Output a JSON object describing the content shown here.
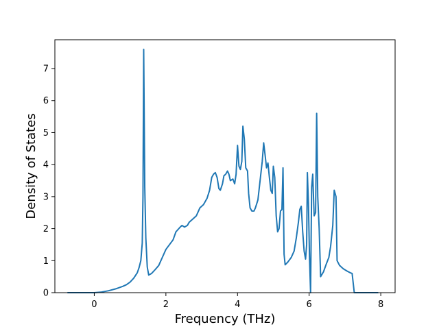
{
  "chart_data": {
    "type": "line",
    "title": "",
    "xlabel": "Frequency (THz)",
    "ylabel": "Density of States",
    "xlim": [
      -1.1,
      8.4
    ],
    "ylim": [
      0,
      7.9
    ],
    "grid": false,
    "xticks": [
      0,
      2,
      4,
      6,
      8
    ],
    "yticks": [
      0,
      1,
      2,
      3,
      4,
      5,
      6,
      7
    ],
    "xtick_labels": [
      "0",
      "2",
      "4",
      "6",
      "8"
    ],
    "ytick_labels": [
      "0",
      "1",
      "2",
      "3",
      "4",
      "5",
      "6",
      "7"
    ],
    "series": [
      {
        "color": "#1f77b4",
        "points": [
          [
            -0.75,
            0.0
          ],
          [
            0.0,
            0.0
          ],
          [
            0.2,
            0.02
          ],
          [
            0.4,
            0.06
          ],
          [
            0.6,
            0.12
          ],
          [
            0.8,
            0.2
          ],
          [
            0.9,
            0.25
          ],
          [
            1.0,
            0.33
          ],
          [
            1.1,
            0.45
          ],
          [
            1.2,
            0.62
          ],
          [
            1.25,
            0.78
          ],
          [
            1.3,
            1.0
          ],
          [
            1.34,
            1.55
          ],
          [
            1.36,
            3.0
          ],
          [
            1.38,
            7.6
          ],
          [
            1.41,
            3.3
          ],
          [
            1.44,
            1.7
          ],
          [
            1.48,
            0.8
          ],
          [
            1.52,
            0.55
          ],
          [
            1.6,
            0.6
          ],
          [
            1.7,
            0.72
          ],
          [
            1.8,
            0.85
          ],
          [
            1.9,
            1.1
          ],
          [
            2.0,
            1.35
          ],
          [
            2.1,
            1.5
          ],
          [
            2.2,
            1.65
          ],
          [
            2.28,
            1.9
          ],
          [
            2.4,
            2.05
          ],
          [
            2.45,
            2.1
          ],
          [
            2.52,
            2.05
          ],
          [
            2.6,
            2.1
          ],
          [
            2.65,
            2.2
          ],
          [
            2.75,
            2.3
          ],
          [
            2.85,
            2.4
          ],
          [
            2.95,
            2.65
          ],
          [
            3.05,
            2.75
          ],
          [
            3.15,
            2.95
          ],
          [
            3.22,
            3.2
          ],
          [
            3.28,
            3.6
          ],
          [
            3.33,
            3.7
          ],
          [
            3.38,
            3.75
          ],
          [
            3.43,
            3.6
          ],
          [
            3.48,
            3.25
          ],
          [
            3.52,
            3.2
          ],
          [
            3.58,
            3.4
          ],
          [
            3.62,
            3.65
          ],
          [
            3.67,
            3.7
          ],
          [
            3.72,
            3.8
          ],
          [
            3.76,
            3.7
          ],
          [
            3.8,
            3.5
          ],
          [
            3.87,
            3.55
          ],
          [
            3.92,
            3.4
          ],
          [
            3.96,
            3.7
          ],
          [
            4.0,
            4.6
          ],
          [
            4.04,
            3.95
          ],
          [
            4.08,
            3.85
          ],
          [
            4.12,
            4.1
          ],
          [
            4.15,
            5.2
          ],
          [
            4.19,
            4.8
          ],
          [
            4.23,
            3.9
          ],
          [
            4.28,
            3.8
          ],
          [
            4.31,
            3.1
          ],
          [
            4.35,
            2.65
          ],
          [
            4.4,
            2.55
          ],
          [
            4.46,
            2.55
          ],
          [
            4.5,
            2.65
          ],
          [
            4.57,
            2.9
          ],
          [
            4.63,
            3.5
          ],
          [
            4.69,
            4.1
          ],
          [
            4.73,
            4.68
          ],
          [
            4.77,
            4.3
          ],
          [
            4.81,
            3.9
          ],
          [
            4.85,
            4.05
          ],
          [
            4.89,
            3.6
          ],
          [
            4.93,
            3.2
          ],
          [
            4.97,
            3.1
          ],
          [
            5.0,
            3.95
          ],
          [
            5.04,
            3.6
          ],
          [
            5.08,
            2.4
          ],
          [
            5.12,
            1.9
          ],
          [
            5.16,
            2.0
          ],
          [
            5.2,
            2.55
          ],
          [
            5.24,
            2.6
          ],
          [
            5.27,
            3.9
          ],
          [
            5.3,
            1.2
          ],
          [
            5.33,
            0.87
          ],
          [
            5.4,
            0.95
          ],
          [
            5.5,
            1.1
          ],
          [
            5.58,
            1.3
          ],
          [
            5.64,
            1.7
          ],
          [
            5.7,
            2.2
          ],
          [
            5.74,
            2.6
          ],
          [
            5.78,
            2.7
          ],
          [
            5.82,
            1.9
          ],
          [
            5.86,
            1.3
          ],
          [
            5.9,
            1.05
          ],
          [
            5.93,
            1.5
          ],
          [
            5.95,
            3.75
          ],
          [
            5.98,
            2.8
          ],
          [
            6.01,
            1.1
          ],
          [
            6.04,
            0.0
          ],
          [
            6.07,
            3.3
          ],
          [
            6.1,
            3.7
          ],
          [
            6.14,
            2.4
          ],
          [
            6.18,
            2.5
          ],
          [
            6.21,
            5.6
          ],
          [
            6.24,
            3.0
          ],
          [
            6.28,
            2.0
          ],
          [
            6.32,
            0.5
          ],
          [
            6.4,
            0.65
          ],
          [
            6.48,
            0.9
          ],
          [
            6.55,
            1.1
          ],
          [
            6.6,
            1.45
          ],
          [
            6.66,
            2.1
          ],
          [
            6.7,
            3.2
          ],
          [
            6.75,
            3.0
          ],
          [
            6.78,
            1.0
          ],
          [
            6.85,
            0.85
          ],
          [
            6.95,
            0.75
          ],
          [
            7.05,
            0.68
          ],
          [
            7.15,
            0.62
          ],
          [
            7.2,
            0.6
          ],
          [
            7.26,
            0.0
          ],
          [
            7.93,
            0.0
          ]
        ]
      }
    ]
  }
}
